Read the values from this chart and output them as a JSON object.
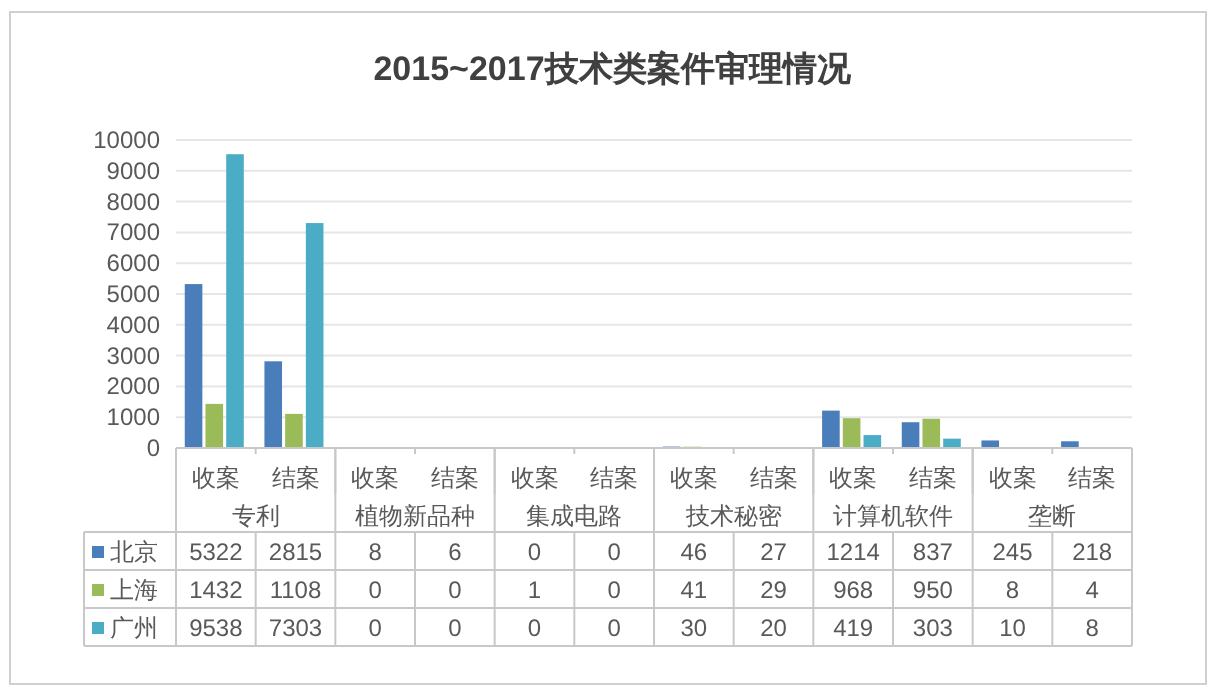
{
  "chart_data": {
    "type": "bar",
    "title": "2015~2017技术类案件审理情况",
    "categories": [
      "收案",
      "结案",
      "收案",
      "结案",
      "收案",
      "结案",
      "收案",
      "结案",
      "收案",
      "结案",
      "收案",
      "结案"
    ],
    "annotations": [
      "专利",
      "植物新品种",
      "集成电路",
      "技术秘密",
      "计算机软件",
      "垄断"
    ],
    "series": [
      {
        "name": "北京",
        "color": "#4a7ebb",
        "values": [
          5322,
          2815,
          8,
          6,
          0,
          0,
          46,
          27,
          1214,
          837,
          245,
          218
        ]
      },
      {
        "name": "上海",
        "color": "#9bbb59",
        "values": [
          1432,
          1108,
          0,
          0,
          1,
          0,
          41,
          29,
          968,
          950,
          8,
          4
        ]
      },
      {
        "name": "广州",
        "color": "#4bacc6",
        "values": [
          9538,
          7303,
          0,
          0,
          0,
          0,
          30,
          20,
          419,
          303,
          10,
          8
        ]
      }
    ],
    "ylim": [
      0,
      10000
    ],
    "yticks": [
      0,
      1000,
      2000,
      3000,
      4000,
      5000,
      6000,
      7000,
      8000,
      9000,
      10000
    ],
    "grid": "y",
    "legend": "bottom left",
    "data_labels": true
  }
}
